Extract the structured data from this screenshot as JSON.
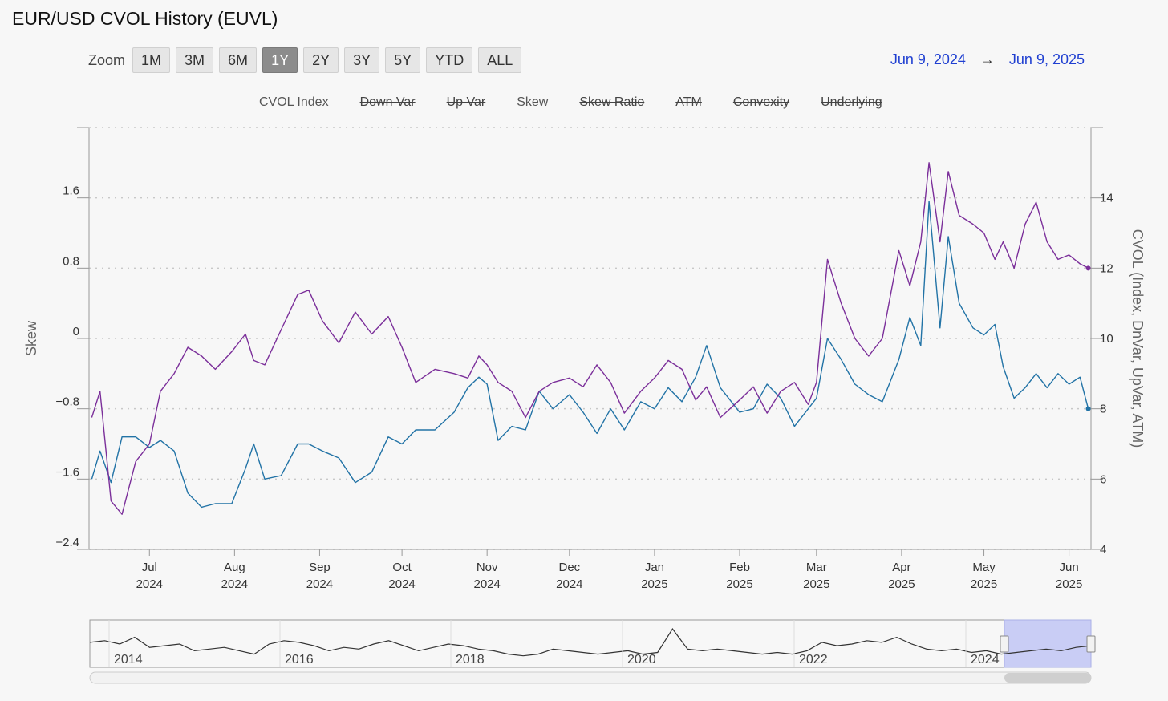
{
  "title": "EUR/USD CVOL History (EUVL)",
  "zoom": {
    "label": "Zoom",
    "buttons": [
      "1M",
      "3M",
      "6M",
      "1Y",
      "2Y",
      "3Y",
      "5Y",
      "YTD",
      "ALL"
    ],
    "selected": "1Y"
  },
  "range": {
    "from": "Jun 9, 2024",
    "arrow": "→",
    "to": "Jun 9, 2025"
  },
  "colors": {
    "cvol": "#2273a6",
    "skew": "#7b2f9a",
    "range_text": "#1f3fd1"
  },
  "legend": [
    {
      "label": "CVOL Index",
      "color": "#2273a6",
      "visible": true,
      "dashed": false
    },
    {
      "label": "Down Var",
      "color": "#333333",
      "visible": false,
      "dashed": false
    },
    {
      "label": "Up Var",
      "color": "#333333",
      "visible": false,
      "dashed": false
    },
    {
      "label": "Skew",
      "color": "#7b2f9a",
      "visible": true,
      "dashed": false
    },
    {
      "label": "Skew Ratio",
      "color": "#333333",
      "visible": false,
      "dashed": false
    },
    {
      "label": "ATM",
      "color": "#333333",
      "visible": false,
      "dashed": false
    },
    {
      "label": "Convexity",
      "color": "#333333",
      "visible": false,
      "dashed": false
    },
    {
      "label": "Underlying",
      "color": "#333333",
      "visible": false,
      "dashed": true
    }
  ],
  "chart_data": {
    "type": "line",
    "x_range": [
      "2024-06-09",
      "2025-06-09"
    ],
    "y_left": {
      "label": "Skew",
      "ylim": [
        -2.4,
        2.4
      ],
      "ticks": [
        "1.6",
        "0.8",
        "0",
        "−0.8",
        "−1.6",
        "−2.4"
      ]
    },
    "y_right": {
      "label": "CVOL (Index, DnVar, UpVar, ATM)",
      "ylim": [
        4,
        16
      ],
      "ticks": [
        "14",
        "12",
        "10",
        "8",
        "6",
        "4"
      ]
    },
    "x_ticks": [
      {
        "month": "Jul",
        "year": "2024",
        "date": "2024-07-01"
      },
      {
        "month": "Aug",
        "year": "2024",
        "date": "2024-08-01"
      },
      {
        "month": "Sep",
        "year": "2024",
        "date": "2024-09-01"
      },
      {
        "month": "Oct",
        "year": "2024",
        "date": "2024-10-01"
      },
      {
        "month": "Nov",
        "year": "2024",
        "date": "2024-11-01"
      },
      {
        "month": "Dec",
        "year": "2024",
        "date": "2024-12-01"
      },
      {
        "month": "Jan",
        "year": "2025",
        "date": "2025-01-01"
      },
      {
        "month": "Feb",
        "year": "2025",
        "date": "2025-02-01"
      },
      {
        "month": "Mar",
        "year": "2025",
        "date": "2025-03-01"
      },
      {
        "month": "Apr",
        "year": "2025",
        "date": "2025-04-01"
      },
      {
        "month": "May",
        "year": "2025",
        "date": "2025-05-01"
      },
      {
        "month": "Jun",
        "year": "2025",
        "date": "2025-06-01"
      }
    ],
    "grid": true,
    "series": [
      {
        "name": "CVOL Index",
        "axis": "right",
        "points": [
          [
            "2024-06-10",
            6.0
          ],
          [
            "2024-06-13",
            6.8
          ],
          [
            "2024-06-17",
            5.9
          ],
          [
            "2024-06-21",
            7.2
          ],
          [
            "2024-06-26",
            7.2
          ],
          [
            "2024-07-01",
            6.9
          ],
          [
            "2024-07-05",
            7.1
          ],
          [
            "2024-07-10",
            6.8
          ],
          [
            "2024-07-15",
            5.6
          ],
          [
            "2024-07-20",
            5.2
          ],
          [
            "2024-07-25",
            5.3
          ],
          [
            "2024-07-31",
            5.3
          ],
          [
            "2024-08-05",
            6.3
          ],
          [
            "2024-08-08",
            7.0
          ],
          [
            "2024-08-12",
            6.0
          ],
          [
            "2024-08-18",
            6.1
          ],
          [
            "2024-08-24",
            7.0
          ],
          [
            "2024-08-28",
            7.0
          ],
          [
            "2024-09-02",
            6.8
          ],
          [
            "2024-09-08",
            6.6
          ],
          [
            "2024-09-14",
            5.9
          ],
          [
            "2024-09-20",
            6.2
          ],
          [
            "2024-09-26",
            7.2
          ],
          [
            "2024-10-01",
            7.0
          ],
          [
            "2024-10-06",
            7.4
          ],
          [
            "2024-10-13",
            7.4
          ],
          [
            "2024-10-20",
            7.9
          ],
          [
            "2024-10-25",
            8.6
          ],
          [
            "2024-10-29",
            8.9
          ],
          [
            "2024-11-01",
            8.7
          ],
          [
            "2024-11-05",
            7.1
          ],
          [
            "2024-11-10",
            7.5
          ],
          [
            "2024-11-15",
            7.4
          ],
          [
            "2024-11-20",
            8.5
          ],
          [
            "2024-11-25",
            8.0
          ],
          [
            "2024-12-01",
            8.4
          ],
          [
            "2024-12-06",
            7.9
          ],
          [
            "2024-12-11",
            7.3
          ],
          [
            "2024-12-16",
            8.0
          ],
          [
            "2024-12-21",
            7.4
          ],
          [
            "2024-12-27",
            8.2
          ],
          [
            "2025-01-01",
            8.0
          ],
          [
            "2025-01-06",
            8.6
          ],
          [
            "2025-01-11",
            8.2
          ],
          [
            "2025-01-16",
            8.9
          ],
          [
            "2025-01-20",
            9.8
          ],
          [
            "2025-01-25",
            8.6
          ],
          [
            "2025-02-01",
            7.9
          ],
          [
            "2025-02-06",
            8.0
          ],
          [
            "2025-02-11",
            8.7
          ],
          [
            "2025-02-16",
            8.3
          ],
          [
            "2025-02-21",
            7.5
          ],
          [
            "2025-02-26",
            8.0
          ],
          [
            "2025-03-01",
            8.3
          ],
          [
            "2025-03-05",
            10.0
          ],
          [
            "2025-03-10",
            9.4
          ],
          [
            "2025-03-15",
            8.7
          ],
          [
            "2025-03-20",
            8.4
          ],
          [
            "2025-03-25",
            8.2
          ],
          [
            "2025-03-31",
            9.4
          ],
          [
            "2025-04-04",
            10.6
          ],
          [
            "2025-04-08",
            9.8
          ],
          [
            "2025-04-11",
            13.9
          ],
          [
            "2025-04-15",
            10.3
          ],
          [
            "2025-04-18",
            12.9
          ],
          [
            "2025-04-22",
            11.0
          ],
          [
            "2025-04-27",
            10.3
          ],
          [
            "2025-05-01",
            10.1
          ],
          [
            "2025-05-05",
            10.4
          ],
          [
            "2025-05-08",
            9.2
          ],
          [
            "2025-05-12",
            8.3
          ],
          [
            "2025-05-16",
            8.6
          ],
          [
            "2025-05-20",
            9.0
          ],
          [
            "2025-05-24",
            8.6
          ],
          [
            "2025-05-28",
            9.0
          ],
          [
            "2025-06-01",
            8.7
          ],
          [
            "2025-06-05",
            8.9
          ],
          [
            "2025-06-08",
            8.0
          ]
        ]
      },
      {
        "name": "Skew",
        "axis": "left",
        "points": [
          [
            "2024-06-10",
            -0.9
          ],
          [
            "2024-06-13",
            -0.6
          ],
          [
            "2024-06-17",
            -1.85
          ],
          [
            "2024-06-21",
            -2.0
          ],
          [
            "2024-06-26",
            -1.4
          ],
          [
            "2024-07-01",
            -1.2
          ],
          [
            "2024-07-05",
            -0.6
          ],
          [
            "2024-07-10",
            -0.4
          ],
          [
            "2024-07-15",
            -0.1
          ],
          [
            "2024-07-20",
            -0.2
          ],
          [
            "2024-07-25",
            -0.35
          ],
          [
            "2024-07-31",
            -0.15
          ],
          [
            "2024-08-05",
            0.05
          ],
          [
            "2024-08-08",
            -0.25
          ],
          [
            "2024-08-12",
            -0.3
          ],
          [
            "2024-08-18",
            0.1
          ],
          [
            "2024-08-24",
            0.5
          ],
          [
            "2024-08-28",
            0.55
          ],
          [
            "2024-09-02",
            0.2
          ],
          [
            "2024-09-08",
            -0.05
          ],
          [
            "2024-09-14",
            0.3
          ],
          [
            "2024-09-20",
            0.05
          ],
          [
            "2024-09-26",
            0.25
          ],
          [
            "2024-10-01",
            -0.1
          ],
          [
            "2024-10-06",
            -0.5
          ],
          [
            "2024-10-13",
            -0.35
          ],
          [
            "2024-10-20",
            -0.4
          ],
          [
            "2024-10-25",
            -0.45
          ],
          [
            "2024-10-29",
            -0.2
          ],
          [
            "2024-11-01",
            -0.3
          ],
          [
            "2024-11-05",
            -0.5
          ],
          [
            "2024-11-10",
            -0.6
          ],
          [
            "2024-11-15",
            -0.9
          ],
          [
            "2024-11-20",
            -0.6
          ],
          [
            "2024-11-25",
            -0.5
          ],
          [
            "2024-12-01",
            -0.45
          ],
          [
            "2024-12-06",
            -0.55
          ],
          [
            "2024-12-11",
            -0.3
          ],
          [
            "2024-12-16",
            -0.5
          ],
          [
            "2024-12-21",
            -0.85
          ],
          [
            "2024-12-27",
            -0.6
          ],
          [
            "2025-01-01",
            -0.45
          ],
          [
            "2025-01-06",
            -0.25
          ],
          [
            "2025-01-11",
            -0.35
          ],
          [
            "2025-01-16",
            -0.7
          ],
          [
            "2025-01-20",
            -0.55
          ],
          [
            "2025-01-25",
            -0.9
          ],
          [
            "2025-02-01",
            -0.7
          ],
          [
            "2025-02-06",
            -0.55
          ],
          [
            "2025-02-11",
            -0.85
          ],
          [
            "2025-02-16",
            -0.6
          ],
          [
            "2025-02-21",
            -0.5
          ],
          [
            "2025-02-26",
            -0.75
          ],
          [
            "2025-03-01",
            -0.5
          ],
          [
            "2025-03-05",
            0.9
          ],
          [
            "2025-03-10",
            0.4
          ],
          [
            "2025-03-15",
            0.0
          ],
          [
            "2025-03-20",
            -0.2
          ],
          [
            "2025-03-25",
            0.0
          ],
          [
            "2025-03-31",
            1.0
          ],
          [
            "2025-04-04",
            0.6
          ],
          [
            "2025-04-08",
            1.1
          ],
          [
            "2025-04-11",
            2.0
          ],
          [
            "2025-04-15",
            1.1
          ],
          [
            "2025-04-18",
            1.9
          ],
          [
            "2025-04-22",
            1.4
          ],
          [
            "2025-04-27",
            1.3
          ],
          [
            "2025-05-01",
            1.2
          ],
          [
            "2025-05-05",
            0.9
          ],
          [
            "2025-05-08",
            1.1
          ],
          [
            "2025-05-12",
            0.8
          ],
          [
            "2025-05-16",
            1.3
          ],
          [
            "2025-05-20",
            1.55
          ],
          [
            "2025-05-24",
            1.1
          ],
          [
            "2025-05-28",
            0.9
          ],
          [
            "2025-06-01",
            0.95
          ],
          [
            "2025-06-05",
            0.85
          ],
          [
            "2025-06-08",
            0.8
          ]
        ]
      }
    ]
  },
  "navigator": {
    "labels": [
      "2014",
      "2016",
      "2018",
      "2020",
      "2022",
      "2024"
    ]
  }
}
